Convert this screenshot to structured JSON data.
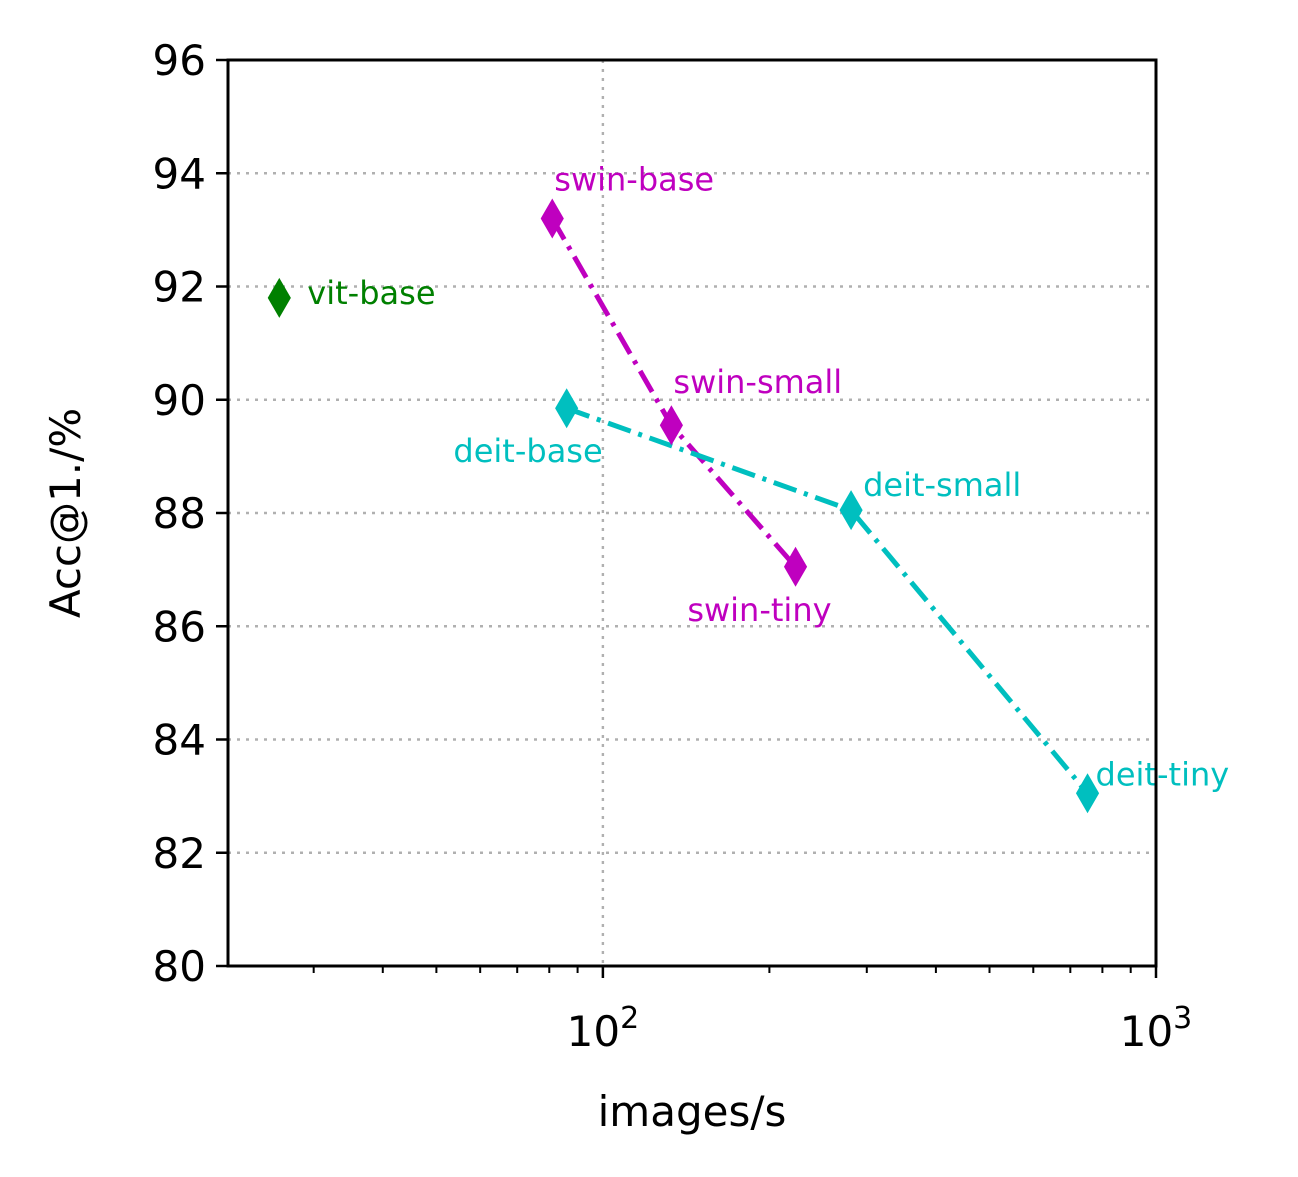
{
  "chart_data": {
    "type": "line",
    "xscale": "log",
    "xlabel": "images/s",
    "ylabel": "Acc@1./%",
    "xlim": [
      21,
      1000
    ],
    "ylim": [
      80,
      96
    ],
    "grid": true,
    "yticks": [
      80,
      82,
      84,
      86,
      88,
      90,
      92,
      94,
      96
    ],
    "xticks": [
      {
        "value": 100,
        "base": "10",
        "exp": "2"
      },
      {
        "value": 1000,
        "base": "10",
        "exp": "3"
      }
    ],
    "series": [
      {
        "color": "#bf00bf",
        "linestyle": "dashdot",
        "points": [
          {
            "x": 81,
            "y": 93.2,
            "label": "swin-base"
          },
          {
            "x": 133,
            "y": 89.55,
            "label": "swin-small"
          },
          {
            "x": 223,
            "y": 87.05,
            "label": "swin-tiny"
          }
        ]
      },
      {
        "color": "#00bfbf",
        "linestyle": "dashdot",
        "points": [
          {
            "x": 86,
            "y": 89.85,
            "label": "deit-base"
          },
          {
            "x": 281,
            "y": 88.05,
            "label": "deit-small"
          },
          {
            "x": 752,
            "y": 83.05,
            "label": "deit-tiny"
          }
        ]
      },
      {
        "color": "#008000",
        "linestyle": "none",
        "points": [
          {
            "x": 26,
            "y": 91.8,
            "label": "vit-base"
          }
        ]
      }
    ]
  }
}
